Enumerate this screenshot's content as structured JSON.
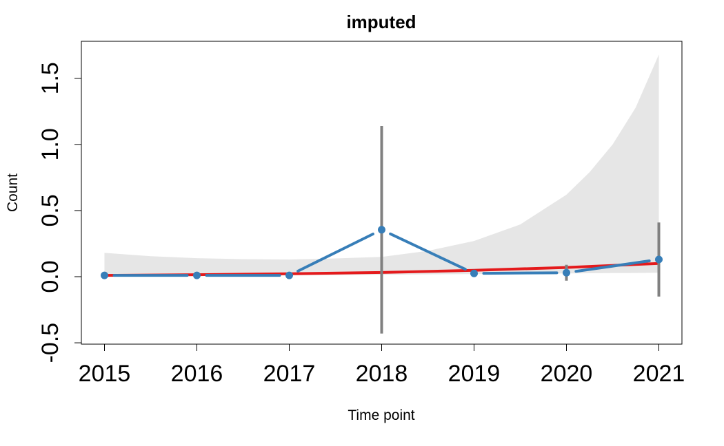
{
  "chart_data": {
    "type": "line",
    "title": "imputed",
    "xlabel": "Time point",
    "ylabel": "Count",
    "x": [
      "2015",
      "2016",
      "2017",
      "2018",
      "2019",
      "2020",
      "2021"
    ],
    "xlim": [
      2014.75,
      2021.25
    ],
    "ylim": [
      -0.51,
      1.78
    ],
    "yticks": [
      "-0.5",
      "0.0",
      "0.5",
      "1.0",
      "1.5"
    ],
    "yticks_values": [
      -0.5,
      0.0,
      0.5,
      1.0,
      1.5
    ],
    "grid": false,
    "series": [
      {
        "kind": "observed",
        "values": [
          0.01,
          0.01,
          0.01,
          0.355,
          0.025,
          0.03,
          0.13
        ],
        "color": "#377EB8"
      },
      {
        "kind": "trend",
        "values": [
          0.01,
          0.015,
          0.022,
          0.032,
          0.048,
          0.07,
          0.1
        ],
        "color": "#E41A1C"
      }
    ],
    "prediction_band": {
      "color": "#E6E6E6",
      "x": [
        2015,
        2015.5,
        2016,
        2016.5,
        2017,
        2017.5,
        2018,
        2018.5,
        2019,
        2019.5,
        2020,
        2020.25,
        2020.5,
        2020.75,
        2021
      ],
      "lower": [
        0.0,
        0.003,
        0.006,
        0.008,
        0.01,
        0.012,
        0.015,
        0.018,
        0.02,
        0.022,
        0.025,
        0.026,
        0.027,
        0.028,
        0.03
      ],
      "upper": [
        0.18,
        0.155,
        0.14,
        0.133,
        0.13,
        0.138,
        0.15,
        0.195,
        0.27,
        0.395,
        0.62,
        0.79,
        1.0,
        1.28,
        1.68
      ]
    },
    "error_bars": {
      "color": "#808080",
      "items": [
        {
          "x": 2018,
          "lower": -0.43,
          "upper": 1.14
        },
        {
          "x": 2020,
          "lower": -0.03,
          "upper": 0.09
        },
        {
          "x": 2021,
          "lower": -0.15,
          "upper": 0.41
        }
      ]
    }
  }
}
